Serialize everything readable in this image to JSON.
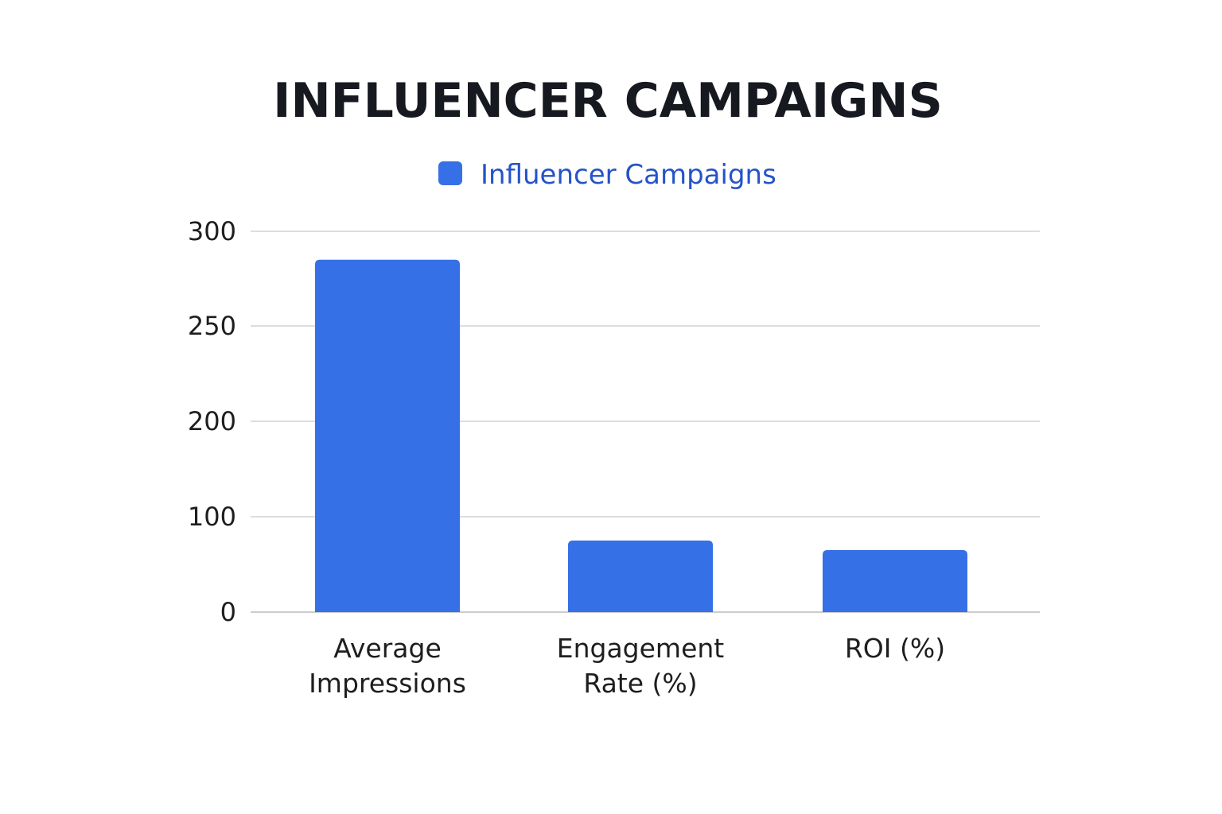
{
  "chart_data": {
    "type": "bar",
    "title": "INFLUENCER CAMPAIGNS",
    "categories": [
      [
        "Average",
        "Impressions"
      ],
      [
        "Engagement",
        "Rate (%)"
      ],
      [
        "ROI (%)"
      ]
    ],
    "series": [
      {
        "name": "Influencer Campaigns",
        "color": "#3670e6",
        "values": [
          285,
          75,
          65
        ]
      }
    ],
    "yticks": [
      0,
      100,
      200,
      250,
      300
    ],
    "ylim": [
      0,
      300
    ],
    "xlabel": "",
    "ylabel": "",
    "grid": true,
    "legend_position": "top-center"
  }
}
